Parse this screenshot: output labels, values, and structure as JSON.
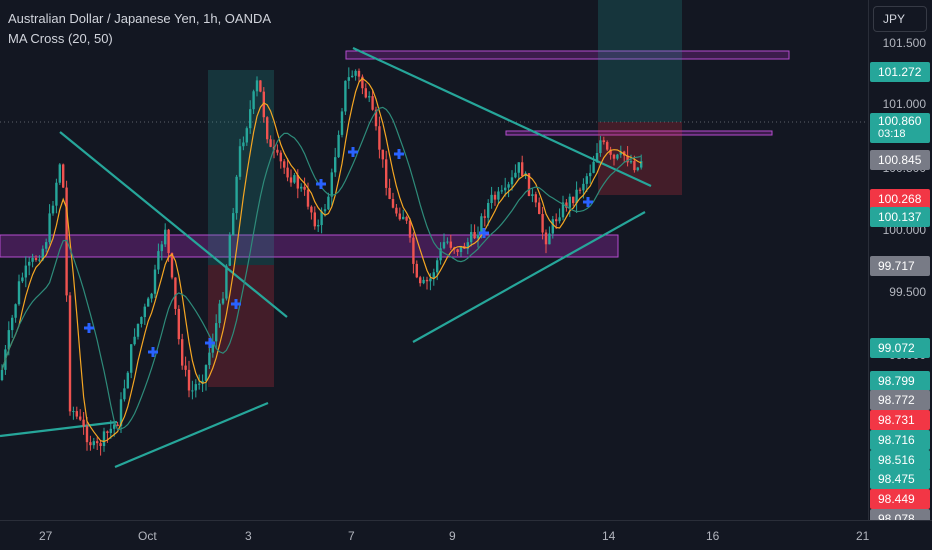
{
  "legend": {
    "title": "Australian Dollar / Japanese Yen, 1h, OANDA",
    "indicator": "MA Cross (20, 50)"
  },
  "currency": "JPY",
  "price_ticks": [
    "101.500",
    "101.000",
    "100.500",
    "100.000",
    "99.500",
    "99.000"
  ],
  "badges": [
    {
      "label": "101.272",
      "color": "#26a69a"
    },
    {
      "label": "100.860",
      "sub": "03:18",
      "color": "#26a69a"
    },
    {
      "label": "100.845",
      "color": "#787b86"
    },
    {
      "label": "100.268",
      "color": "#f23645"
    },
    {
      "label": "100.137",
      "color": "#26a69a"
    },
    {
      "label": "99.717",
      "color": "#787b86"
    },
    {
      "label": "99.072",
      "color": "#26a69a"
    },
    {
      "label": "98.799",
      "color": "#26a69a"
    },
    {
      "label": "98.772",
      "color": "#787b86"
    },
    {
      "label": "98.731",
      "color": "#f23645"
    },
    {
      "label": "98.716",
      "color": "#26a69a"
    },
    {
      "label": "98.516",
      "color": "#26a69a"
    },
    {
      "label": "98.475",
      "color": "#26a69a"
    },
    {
      "label": "98.449",
      "color": "#f23645"
    },
    {
      "label": "98.078",
      "color": "#787b86"
    }
  ],
  "time_labels": [
    "27",
    "Oct",
    "3",
    "7",
    "9",
    "14",
    "16",
    "21"
  ],
  "colors": {
    "up": "#26a69a",
    "down": "#ef5350",
    "ma_fast": "#f5a623",
    "ma_slow": "#2e8b7a",
    "cross": "#2962ff",
    "trendline": "#26a69a",
    "zone_fill": "#9c27b0",
    "target_zone": "#26a69a",
    "stop_zone": "#f23645"
  }
}
